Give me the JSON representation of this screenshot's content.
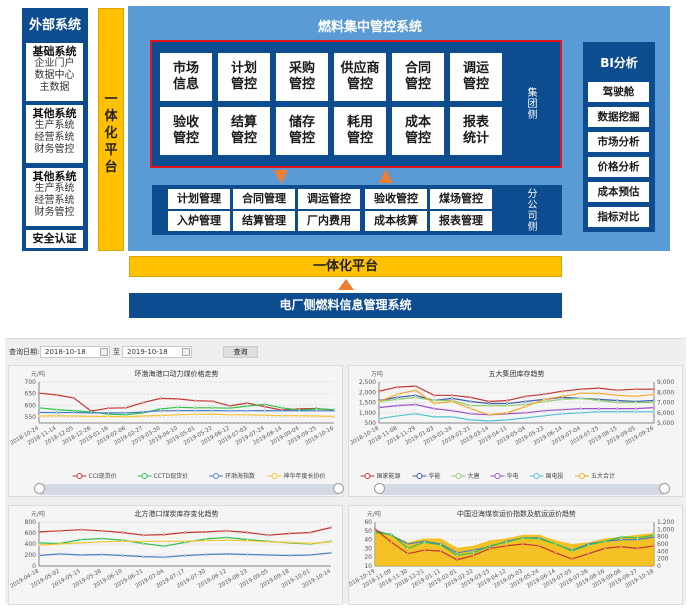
{
  "diagram": {
    "external": {
      "title": "外部系统",
      "items": [
        {
          "title": "基础系统",
          "lines": "企业门户\n数据中心\n主数据"
        },
        {
          "title": "其他系统",
          "lines": "生产系统\n经营系统\n财务管控"
        },
        {
          "title": "其他系统",
          "lines": "生产系统\n经营系统\n财务管控"
        }
      ],
      "security": "安全认证"
    },
    "vertical_platform": "一体化平台",
    "main_title": "燃料集中管控系统",
    "group_modules": [
      "市场\n信息",
      "计划\n管控",
      "采购\n管控",
      "供应商\n管控",
      "合同\n管控",
      "调运\n管控",
      "验收\n管控",
      "结算\n管控",
      "储存\n管控",
      "耗用\n管控",
      "成本\n管控",
      "报表\n统计"
    ],
    "group_label": "集团侧",
    "branch_modules": [
      "计划管理",
      "合同管理",
      "调运管控",
      "验收管控",
      "煤场管控",
      "入炉管理",
      "结算管理",
      "厂内费用",
      "成本核算",
      "报表管理"
    ],
    "branch_label": "分公司侧",
    "bi": {
      "title": "BI分析",
      "items": [
        "驾驶舱",
        "数据挖掘",
        "市场分析",
        "价格分析",
        "成本预估",
        "指标对比"
      ]
    },
    "platform_bar": "一体化平台",
    "plant_system": "电厂侧燃料信息管理系统",
    "colors": {
      "dark_blue": "#0d4d8f",
      "light_blue": "#5b9bd5",
      "yellow": "#ffc000",
      "red_border": "#e8141b",
      "arrow": "#ed7d31"
    }
  },
  "dashboard": {
    "query": {
      "label": "查询日期:",
      "start": "2018-10-18",
      "separator": "至",
      "end": "2019-10-18",
      "button": "查询"
    }
  },
  "chart_data": [
    {
      "type": "line",
      "title": "环渤海港口动力煤价格走势",
      "ylabel": "元/吨",
      "ylim": [
        525,
        700
      ],
      "yticks": [
        550,
        600,
        650,
        700
      ],
      "categories": [
        "2018-10-24",
        "2018-11-14",
        "2018-12-05",
        "2018-12-26",
        "2019-01-16",
        "2019-02-06",
        "2019-02-27",
        "2019-03-20",
        "2019-04-10",
        "2019-05-01",
        "2019-05-22",
        "2019-06-12",
        "2019-07-03",
        "2019-07-24",
        "2019-08-14",
        "2019-09-04",
        "2019-09-25",
        "2019-10-16"
      ],
      "legend": "bottom",
      "grid": true,
      "series": [
        {
          "name": "CCI现货价",
          "color": "#c23531",
          "values": [
            652,
            645,
            632,
            576,
            588,
            590,
            612,
            630,
            628,
            620,
            618,
            598,
            610,
            595,
            580,
            585,
            587,
            580
          ]
        },
        {
          "name": "CCTD现货价",
          "color": "#2ec24a",
          "values": [
            590,
            582,
            578,
            572,
            563,
            560,
            568,
            585,
            592,
            590,
            590,
            588,
            597,
            605,
            590,
            580,
            585,
            582
          ]
        },
        {
          "name": "环渤海指数",
          "color": "#4a7ec2",
          "values": [
            570,
            570,
            570,
            568,
            568,
            568,
            572,
            577,
            578,
            578,
            578,
            577,
            577,
            578,
            577,
            578,
            577,
            577
          ]
        },
        {
          "name": "神华年度长协价",
          "color": "#f5c330",
          "values": [
            555,
            556,
            555,
            553,
            553,
            552,
            555,
            557,
            560,
            562,
            563,
            560,
            560,
            558,
            556,
            556,
            555,
            553
          ]
        }
      ]
    },
    {
      "type": "line",
      "title": "五大集团库存趋势",
      "ylabel": "万吨",
      "ylim": [
        500,
        2500
      ],
      "yticks": [
        500,
        1000,
        1500,
        2000,
        2500
      ],
      "y2lim": [
        5000,
        9000
      ],
      "y2ticks": [
        5000,
        6000,
        7000,
        8000,
        9000
      ],
      "categories": [
        "2018-10-18",
        "2018-11-08",
        "2018-11-29",
        "2019-01-03",
        "2019-01-24",
        "2019-02-21",
        "2019-03-14",
        "2019-04-11",
        "2019-05-04",
        "2019-05-23",
        "2019-06-14",
        "2019-07-04",
        "2019-07-25",
        "2019-08-15",
        "2019-09-05",
        "2019-09-26"
      ],
      "legend": "bottom",
      "grid": true,
      "series": [
        {
          "name": "国家能源",
          "color": "#c23531",
          "values": [
            2050,
            2250,
            2300,
            1850,
            1850,
            1750,
            1550,
            1600,
            1800,
            1900,
            2050,
            2150,
            2200,
            2100,
            2150,
            2150
          ]
        },
        {
          "name": "华能",
          "color": "#3d5ea8",
          "values": [
            1600,
            1750,
            1850,
            1600,
            1700,
            1550,
            1450,
            1450,
            1550,
            1650,
            1750,
            1700,
            1650,
            1600,
            1550,
            1600
          ]
        },
        {
          "name": "大唐",
          "color": "#91cc75",
          "values": [
            1550,
            1650,
            1750,
            1600,
            1600,
            1350,
            1350,
            1350,
            1400,
            1550,
            1650,
            1700,
            1600,
            1500,
            1500,
            1500
          ]
        },
        {
          "name": "华电",
          "color": "#9a4fc8",
          "values": [
            1250,
            1350,
            1400,
            1200,
            1100,
            950,
            900,
            950,
            1000,
            1100,
            1150,
            1200,
            1200,
            1200,
            1200,
            1250
          ]
        },
        {
          "name": "国电投",
          "color": "#4fc1d6",
          "values": [
            700,
            850,
            950,
            800,
            800,
            650,
            600,
            650,
            750,
            850,
            950,
            1000,
            1050,
            1050,
            1050,
            1050
          ]
        },
        {
          "name": "五大合计",
          "color": "#f5a623",
          "axis": "right",
          "values": [
            7100,
            7800,
            8200,
            6900,
            7100,
            6400,
            5800,
            6000,
            6600,
            7300,
            7600,
            7900,
            7900,
            7700,
            7600,
            7800
          ]
        }
      ]
    },
    {
      "type": "line",
      "title": "北方港口煤炭库存变化趋势",
      "ylabel": "元/吨",
      "ylim": [
        0,
        800
      ],
      "yticks": [
        0,
        200,
        400,
        600,
        800
      ],
      "categories": [
        "2019-04-18",
        "2019-05-02",
        "2019-05-15",
        "2019-05-28",
        "2019-06-10",
        "2019-06-21",
        "2019-07-04",
        "2019-07-17",
        "2019-07-30",
        "2019-08-12",
        "2019-08-23",
        "2019-09-05",
        "2019-09-18",
        "2019-10-01",
        "2019-10-14"
      ],
      "grid": true,
      "series": [
        {
          "color": "#c23531",
          "values": [
            620,
            640,
            660,
            640,
            610,
            560,
            570,
            610,
            620,
            640,
            610,
            560,
            590,
            610,
            700
          ]
        },
        {
          "color": "#2ec24a",
          "values": [
            420,
            410,
            480,
            500,
            470,
            410,
            360,
            430,
            490,
            520,
            480,
            450,
            420,
            400,
            450
          ]
        },
        {
          "color": "#f5c330",
          "values": [
            380,
            400,
            420,
            440,
            450,
            450,
            450,
            450,
            460,
            470,
            460,
            440,
            430,
            410,
            440
          ]
        },
        {
          "color": "#4a7ec2",
          "values": [
            190,
            220,
            200,
            210,
            190,
            170,
            160,
            190,
            210,
            220,
            210,
            200,
            190,
            200,
            240
          ]
        }
      ]
    },
    {
      "type": "line",
      "title": "中国沿海煤炭运价指数及航运运价趋势",
      "ylabel": "元/吨",
      "ylim": [
        10,
        60
      ],
      "yticks": [
        10,
        20,
        30,
        40,
        50,
        60
      ],
      "y2lim": [
        0,
        1200
      ],
      "y2ticks": [
        0,
        200,
        400,
        600,
        800,
        1000,
        1200
      ],
      "categories": [
        "2018-10-19",
        "2018-11-09",
        "2018-11-30",
        "2018-12-21",
        "2019-01-11",
        "2019-02-01",
        "2019-02-22",
        "2019-03-15",
        "2019-04-12",
        "2019-05-03",
        "2019-05-24",
        "2019-06-14",
        "2019-07-05",
        "2019-07-26",
        "2019-08-16",
        "2019-09-06",
        "2019-09-27",
        "2019-10-18"
      ],
      "grid": true,
      "series": [
        {
          "color": "#f5b800",
          "axis": "right",
          "area": true,
          "values": [
            1000,
            850,
            650,
            750,
            750,
            500,
            550,
            700,
            750,
            850,
            850,
            700,
            600,
            650,
            750,
            800,
            850,
            900
          ]
        },
        {
          "color": "#4a7ec2",
          "values": [
            50,
            45,
            35,
            38,
            35,
            25,
            28,
            32,
            38,
            42,
            42,
            35,
            28,
            35,
            38,
            40,
            40,
            43
          ]
        },
        {
          "color": "#2ec24a",
          "values": [
            48,
            46,
            30,
            37,
            34,
            22,
            25,
            33,
            37,
            42,
            41,
            35,
            27,
            34,
            38,
            43,
            42,
            45
          ]
        },
        {
          "color": "#c23531",
          "values": [
            52,
            37,
            24,
            28,
            27,
            17,
            22,
            30,
            33,
            35,
            33,
            25,
            18,
            24,
            30,
            32,
            30,
            33
          ]
        }
      ]
    }
  ]
}
